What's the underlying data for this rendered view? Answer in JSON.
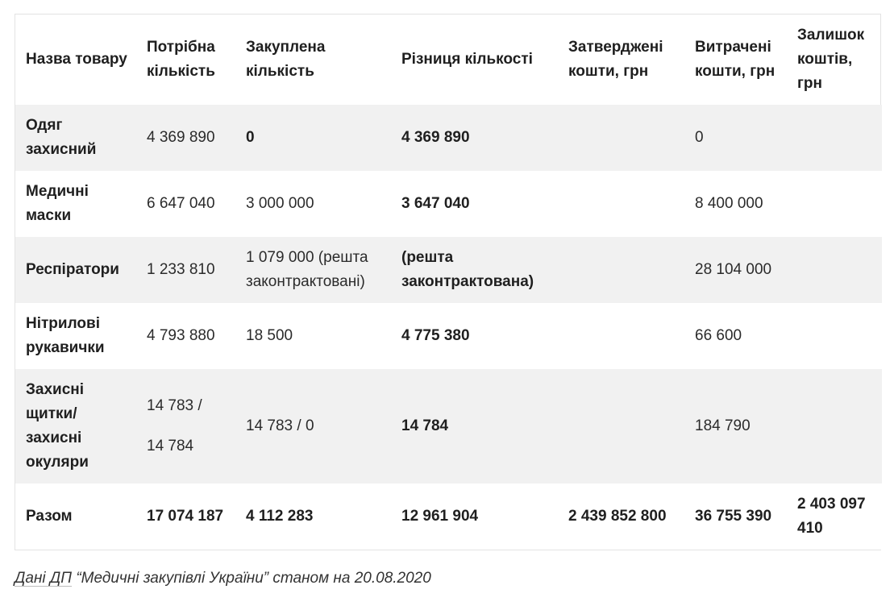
{
  "headers": [
    "Назва товару",
    "Потрібна кількість",
    "Закуплена кількість",
    "Різниця кількості",
    "Затверджені кошти, грн",
    "Витрачені кошти, грн",
    "Залишок коштів, грн"
  ],
  "rows": [
    {
      "name": "Одяг захисний",
      "needed": "4 369 890",
      "purchased": "0",
      "difference": "4 369 890",
      "approved": "",
      "spent": "0",
      "remaining": ""
    },
    {
      "name": "Медичні маски",
      "needed": "6 647 040",
      "purchased": "3 000 000",
      "difference": "3 647 040",
      "approved": "",
      "spent": "8 400 000",
      "remaining": ""
    },
    {
      "name": "Респіратори",
      "needed": "1 233 810",
      "purchased": "1 079 000 (решта законтрактовані)",
      "difference": "(решта законтрактована)",
      "approved": "",
      "spent": "28 104 000",
      "remaining": ""
    },
    {
      "name": "Нітрилові рукавички",
      "needed": "4 793 880",
      "purchased": "18 500",
      "difference": "4 775 380",
      "approved": "",
      "spent": "66 600",
      "remaining": ""
    },
    {
      "name": "Захисні щитки/ захисні окуляри",
      "needed_a": "14 783 /",
      "needed_b": "14 784",
      "purchased": "14 783 / 0",
      "difference": "14 784",
      "approved": "",
      "spent": "184 790",
      "remaining": ""
    }
  ],
  "total": {
    "name": "Разом",
    "needed": "17 074 187",
    "purchased": "4 112 283",
    "difference": "12 961 904",
    "approved": "2 439 852 800",
    "spent": "36 755 390",
    "remaining": "2 403 097 410"
  },
  "caption": {
    "link_text": "Дані ДП",
    "text": " “Медичні закупівлі України” станом на 20.08.2020"
  }
}
